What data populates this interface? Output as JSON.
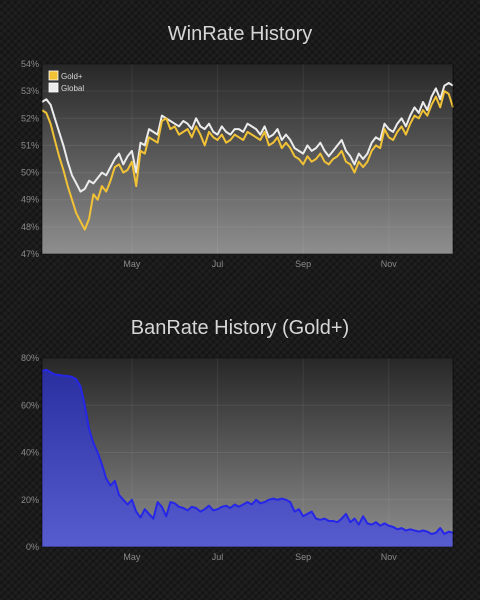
{
  "colors": {
    "gold": "#f2c236",
    "global": "#ececec",
    "ban_line": "#2626e8",
    "ban_fill_top": "#2a2fa6",
    "ban_fill_bottom": "#5459d2"
  },
  "chart_data": [
    {
      "type": "line",
      "title": "WinRate History",
      "x_ticks": [
        "May",
        "Jul",
        "Sep",
        "Nov"
      ],
      "x_tick_positions": [
        2.5,
        4.5,
        6.5,
        8.5
      ],
      "x_range": [
        0.4,
        10
      ],
      "y_ticks": [
        "54%",
        "53%",
        "52%",
        "51%",
        "50%",
        "49%",
        "48%",
        "47%"
      ],
      "ylim": [
        47,
        54
      ],
      "legend_position": "top-left",
      "grid": true,
      "series": [
        {
          "name": "Gold+",
          "color": "#f2c236",
          "x": [
            0.4,
            0.5,
            0.6,
            0.7,
            0.8,
            0.9,
            1.0,
            1.1,
            1.2,
            1.3,
            1.4,
            1.5,
            1.6,
            1.7,
            1.8,
            1.9,
            2.0,
            2.1,
            2.2,
            2.3,
            2.4,
            2.5,
            2.6,
            2.7,
            2.8,
            2.9,
            3.0,
            3.1,
            3.2,
            3.3,
            3.4,
            3.5,
            3.6,
            3.7,
            3.8,
            3.9,
            4.0,
            4.1,
            4.2,
            4.3,
            4.4,
            4.5,
            4.6,
            4.7,
            4.8,
            4.9,
            5.0,
            5.1,
            5.2,
            5.3,
            5.4,
            5.5,
            5.6,
            5.7,
            5.8,
            5.9,
            6.0,
            6.1,
            6.2,
            6.3,
            6.4,
            6.5,
            6.6,
            6.7,
            6.8,
            6.9,
            7.0,
            7.1,
            7.2,
            7.3,
            7.4,
            7.5,
            7.6,
            7.7,
            7.8,
            7.9,
            8.0,
            8.1,
            8.2,
            8.3,
            8.4,
            8.5,
            8.6,
            8.7,
            8.8,
            8.9,
            9.0,
            9.1,
            9.2,
            9.3,
            9.4,
            9.5,
            9.6,
            9.7,
            9.8,
            9.9,
            10.0
          ],
          "values": [
            52.3,
            52.2,
            51.8,
            51.2,
            50.6,
            50.1,
            49.5,
            49.0,
            48.5,
            48.2,
            47.9,
            48.3,
            49.2,
            49.0,
            49.5,
            49.3,
            49.7,
            50.2,
            50.3,
            50.0,
            50.1,
            50.4,
            49.5,
            50.8,
            50.7,
            51.3,
            51.2,
            51.1,
            51.9,
            52.0,
            51.6,
            51.7,
            51.4,
            51.5,
            51.6,
            51.3,
            51.7,
            51.4,
            51.0,
            51.5,
            51.3,
            51.2,
            51.4,
            51.1,
            51.2,
            51.4,
            51.3,
            51.2,
            51.5,
            51.4,
            51.3,
            51.2,
            51.5,
            51.0,
            51.1,
            51.3,
            50.9,
            51.1,
            50.9,
            50.6,
            50.5,
            50.3,
            50.6,
            50.4,
            50.5,
            50.7,
            50.4,
            50.3,
            50.5,
            50.6,
            50.8,
            50.4,
            50.3,
            50.0,
            50.4,
            50.2,
            50.4,
            50.8,
            51.0,
            50.9,
            51.6,
            51.3,
            51.2,
            51.5,
            51.7,
            51.4,
            51.8,
            52.1,
            52.0,
            52.3,
            52.1,
            52.5,
            52.8,
            52.4,
            53.0,
            52.9,
            52.4
          ]
        },
        {
          "name": "Global",
          "color": "#ececec",
          "x": [
            0.4,
            0.5,
            0.6,
            0.7,
            0.8,
            0.9,
            1.0,
            1.1,
            1.2,
            1.3,
            1.4,
            1.5,
            1.6,
            1.7,
            1.8,
            1.9,
            2.0,
            2.1,
            2.2,
            2.3,
            2.4,
            2.5,
            2.6,
            2.7,
            2.8,
            2.9,
            3.0,
            3.1,
            3.2,
            3.3,
            3.4,
            3.5,
            3.6,
            3.7,
            3.8,
            3.9,
            4.0,
            4.1,
            4.2,
            4.3,
            4.4,
            4.5,
            4.6,
            4.7,
            4.8,
            4.9,
            5.0,
            5.1,
            5.2,
            5.3,
            5.4,
            5.5,
            5.6,
            5.7,
            5.8,
            5.9,
            6.0,
            6.1,
            6.2,
            6.3,
            6.4,
            6.5,
            6.6,
            6.7,
            6.8,
            6.9,
            7.0,
            7.1,
            7.2,
            7.3,
            7.4,
            7.5,
            7.6,
            7.7,
            7.8,
            7.9,
            8.0,
            8.1,
            8.2,
            8.3,
            8.4,
            8.5,
            8.6,
            8.7,
            8.8,
            8.9,
            9.0,
            9.1,
            9.2,
            9.3,
            9.4,
            9.5,
            9.6,
            9.7,
            9.8,
            9.9,
            10.0
          ],
          "values": [
            52.6,
            52.7,
            52.5,
            52.0,
            51.5,
            51.0,
            50.4,
            49.9,
            49.6,
            49.3,
            49.4,
            49.7,
            49.6,
            49.8,
            50.0,
            49.9,
            50.2,
            50.5,
            50.7,
            50.3,
            50.6,
            50.8,
            50.0,
            51.1,
            51.0,
            51.6,
            51.5,
            51.4,
            52.1,
            52.0,
            51.9,
            51.8,
            51.7,
            51.9,
            51.8,
            51.6,
            52.0,
            51.7,
            51.6,
            51.8,
            51.5,
            51.4,
            51.7,
            51.5,
            51.4,
            51.6,
            51.6,
            51.5,
            51.8,
            51.7,
            51.6,
            51.4,
            51.7,
            51.3,
            51.4,
            51.6,
            51.2,
            51.4,
            51.2,
            50.9,
            50.8,
            50.7,
            51.0,
            50.8,
            50.9,
            51.1,
            50.8,
            50.6,
            50.8,
            51.0,
            51.2,
            50.8,
            50.6,
            50.3,
            50.7,
            50.5,
            50.7,
            51.1,
            51.3,
            51.2,
            51.8,
            51.6,
            51.5,
            51.8,
            52.0,
            51.7,
            52.1,
            52.4,
            52.2,
            52.6,
            52.3,
            52.8,
            53.1,
            52.7,
            53.2,
            53.3,
            53.2
          ]
        }
      ]
    },
    {
      "type": "area",
      "title": "BanRate History (Gold+)",
      "x_ticks": [
        "May",
        "Jul",
        "Sep",
        "Nov"
      ],
      "x_tick_positions": [
        2.5,
        4.5,
        6.5,
        8.5
      ],
      "x_range": [
        0.4,
        10
      ],
      "y_ticks": [
        "80%",
        "60%",
        "40%",
        "20%",
        "0%"
      ],
      "ylim": [
        0,
        80
      ],
      "grid": true,
      "series": [
        {
          "name": "Gold+",
          "color": "#2626e8",
          "x": [
            0.4,
            0.5,
            0.6,
            0.7,
            0.8,
            0.9,
            1.0,
            1.1,
            1.2,
            1.3,
            1.4,
            1.5,
            1.6,
            1.7,
            1.8,
            1.9,
            2.0,
            2.1,
            2.2,
            2.3,
            2.4,
            2.5,
            2.6,
            2.7,
            2.8,
            2.9,
            3.0,
            3.1,
            3.2,
            3.3,
            3.4,
            3.5,
            3.6,
            3.7,
            3.8,
            3.9,
            4.0,
            4.1,
            4.2,
            4.3,
            4.4,
            4.5,
            4.6,
            4.7,
            4.8,
            4.9,
            5.0,
            5.1,
            5.2,
            5.3,
            5.4,
            5.5,
            5.6,
            5.7,
            5.8,
            5.9,
            6.0,
            6.1,
            6.2,
            6.3,
            6.4,
            6.5,
            6.6,
            6.7,
            6.8,
            6.9,
            7.0,
            7.1,
            7.2,
            7.3,
            7.4,
            7.5,
            7.6,
            7.7,
            7.8,
            7.9,
            8.0,
            8.1,
            8.2,
            8.3,
            8.4,
            8.5,
            8.6,
            8.7,
            8.8,
            8.9,
            9.0,
            9.1,
            9.2,
            9.3,
            9.4,
            9.5,
            9.6,
            9.7,
            9.8,
            9.9,
            10.0
          ],
          "values": [
            74.5,
            75.0,
            74.0,
            73.0,
            72.8,
            72.5,
            72.4,
            72.0,
            71.0,
            68.0,
            60.0,
            50.0,
            44.0,
            40.0,
            35.0,
            29.0,
            26.0,
            28.0,
            22.0,
            20.0,
            18.0,
            20.0,
            15.0,
            12.5,
            16.0,
            14.0,
            12.0,
            19.0,
            17.0,
            13.0,
            19.0,
            18.5,
            17.0,
            16.5,
            15.5,
            17.0,
            16.5,
            15.0,
            16.0,
            17.5,
            15.5,
            16.0,
            17.0,
            17.5,
            16.5,
            18.0,
            17.0,
            18.0,
            19.0,
            18.0,
            20.0,
            18.5,
            19.0,
            20.0,
            20.5,
            20.0,
            20.5,
            20.0,
            19.0,
            15.0,
            16.0,
            13.0,
            14.0,
            15.0,
            12.0,
            11.5,
            12.0,
            11.0,
            11.0,
            10.5,
            12.0,
            14.0,
            10.5,
            12.0,
            9.5,
            13.0,
            10.0,
            9.5,
            10.5,
            9.0,
            10.0,
            9.0,
            8.5,
            7.5,
            8.0,
            7.0,
            7.5,
            7.0,
            6.5,
            7.0,
            6.5,
            5.5,
            6.0,
            8.0,
            5.5,
            6.5,
            6.0
          ]
        }
      ]
    }
  ]
}
